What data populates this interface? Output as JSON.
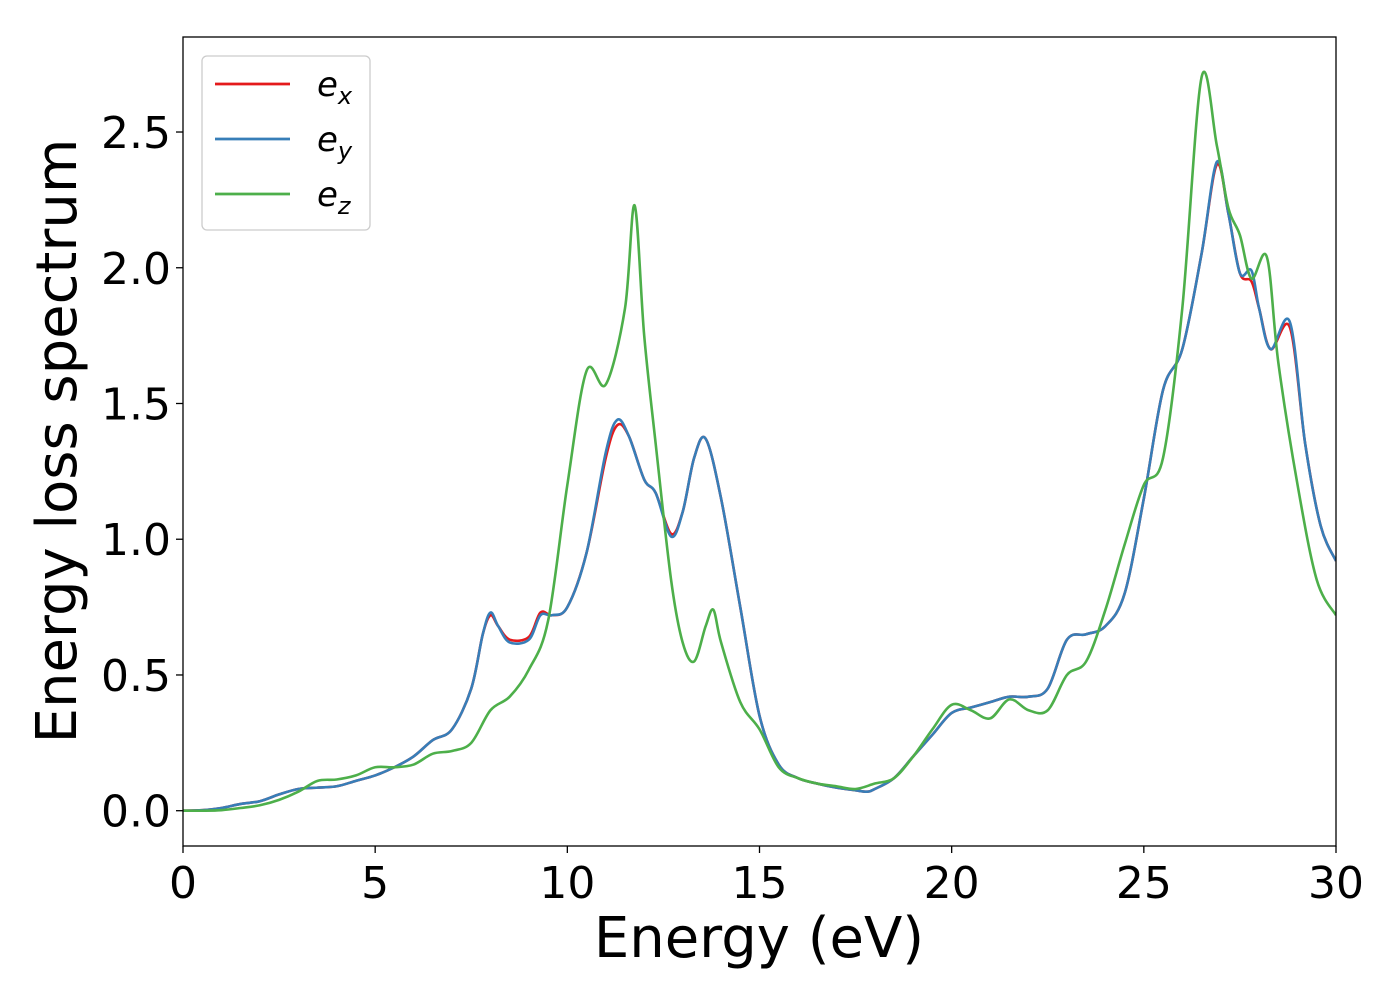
{
  "chart_data": {
    "type": "line",
    "title": "",
    "xlabel": "Energy (eV)",
    "ylabel": "Energy loss spectrum",
    "xlim": [
      0,
      30
    ],
    "ylim": [
      -0.13,
      2.85
    ],
    "xticks": [
      0,
      5,
      10,
      15,
      20,
      25,
      30
    ],
    "xtick_labels": [
      "0",
      "5",
      "10",
      "15",
      "20",
      "25",
      "30"
    ],
    "yticks": [
      0.0,
      0.5,
      1.0,
      1.5,
      2.0,
      2.5
    ],
    "ytick_labels": [
      "0.0",
      "0.5",
      "1.0",
      "1.5",
      "2.0",
      "2.5"
    ],
    "grid": false,
    "legend_position": "top-left",
    "series": [
      {
        "name": "e_x",
        "legend_base": "e",
        "legend_sub": "x",
        "color": "#e41a1c",
        "x": [
          0,
          0.5,
          1,
          1.5,
          2,
          2.5,
          3,
          3.5,
          4,
          4.5,
          5,
          5.5,
          6,
          6.5,
          7,
          7.5,
          7.8,
          8,
          8.2,
          8.5,
          9,
          9.3,
          9.6,
          10,
          10.5,
          11,
          11.3,
          11.6,
          12,
          12.3,
          12.7,
          13,
          13.3,
          13.6,
          14,
          14.5,
          15,
          15.5,
          16,
          16.5,
          17,
          17.5,
          17.8,
          18,
          18.5,
          19,
          19.5,
          20,
          20.5,
          21,
          21.5,
          22,
          22.5,
          23,
          23.5,
          24,
          24.5,
          25,
          25.5,
          26,
          26.5,
          26.9,
          27.2,
          27.5,
          27.8,
          28,
          28.3,
          28.8,
          29.2,
          29.6,
          30
        ],
        "y": [
          0,
          0.002,
          0.01,
          0.025,
          0.035,
          0.06,
          0.08,
          0.085,
          0.09,
          0.11,
          0.13,
          0.16,
          0.2,
          0.26,
          0.3,
          0.45,
          0.65,
          0.72,
          0.68,
          0.63,
          0.64,
          0.73,
          0.72,
          0.75,
          0.95,
          1.3,
          1.42,
          1.38,
          1.22,
          1.17,
          1.02,
          1.1,
          1.3,
          1.37,
          1.15,
          0.75,
          0.35,
          0.17,
          0.12,
          0.1,
          0.085,
          0.075,
          0.07,
          0.08,
          0.12,
          0.2,
          0.28,
          0.36,
          0.38,
          0.4,
          0.42,
          0.42,
          0.45,
          0.63,
          0.65,
          0.68,
          0.8,
          1.15,
          1.55,
          1.7,
          2.05,
          2.38,
          2.2,
          1.98,
          1.95,
          1.85,
          1.7,
          1.78,
          1.35,
          1.05,
          0.92
        ]
      },
      {
        "name": "e_y",
        "legend_base": "e",
        "legend_sub": "y",
        "color": "#377eb8",
        "x": [
          0,
          0.5,
          1,
          1.5,
          2,
          2.5,
          3,
          3.5,
          4,
          4.5,
          5,
          5.5,
          6,
          6.5,
          7,
          7.5,
          7.8,
          8,
          8.2,
          8.5,
          9,
          9.3,
          9.6,
          10,
          10.5,
          11,
          11.3,
          11.6,
          12,
          12.3,
          12.7,
          13,
          13.3,
          13.6,
          14,
          14.5,
          15,
          15.5,
          16,
          16.5,
          17,
          17.5,
          17.8,
          18,
          18.5,
          19,
          19.5,
          20,
          20.5,
          21,
          21.5,
          22,
          22.5,
          23,
          23.5,
          24,
          24.5,
          25,
          25.5,
          26,
          26.5,
          26.9,
          27.2,
          27.5,
          27.8,
          28,
          28.3,
          28.8,
          29.2,
          29.6,
          30
        ],
        "y": [
          0,
          0.002,
          0.01,
          0.025,
          0.035,
          0.06,
          0.08,
          0.085,
          0.09,
          0.11,
          0.13,
          0.16,
          0.2,
          0.26,
          0.3,
          0.45,
          0.65,
          0.73,
          0.68,
          0.62,
          0.63,
          0.72,
          0.72,
          0.75,
          0.95,
          1.32,
          1.44,
          1.38,
          1.22,
          1.17,
          1.01,
          1.1,
          1.3,
          1.37,
          1.15,
          0.75,
          0.35,
          0.17,
          0.12,
          0.1,
          0.085,
          0.075,
          0.07,
          0.08,
          0.12,
          0.2,
          0.28,
          0.36,
          0.38,
          0.4,
          0.42,
          0.42,
          0.45,
          0.63,
          0.65,
          0.68,
          0.8,
          1.15,
          1.55,
          1.7,
          2.05,
          2.39,
          2.2,
          1.98,
          1.99,
          1.85,
          1.7,
          1.8,
          1.35,
          1.05,
          0.92
        ]
      },
      {
        "name": "e_z",
        "legend_base": "e",
        "legend_sub": "z",
        "color": "#4daf4a",
        "x": [
          0,
          0.5,
          1,
          1.5,
          2,
          2.5,
          3,
          3.5,
          4,
          4.5,
          5,
          5.5,
          6,
          6.5,
          7,
          7.5,
          8,
          8.5,
          9,
          9.5,
          10,
          10.5,
          11,
          11.5,
          11.75,
          12,
          12.3,
          12.7,
          13,
          13.3,
          13.6,
          13.8,
          14,
          14.5,
          15,
          15.5,
          16,
          16.5,
          17,
          17.5,
          18,
          18.5,
          19,
          19.5,
          20,
          20.5,
          21,
          21.5,
          22,
          22.5,
          23,
          23.5,
          24,
          24.5,
          25,
          25.5,
          26,
          26.5,
          26.9,
          27.2,
          27.5,
          27.8,
          28.2,
          28.5,
          29,
          29.5,
          30
        ],
        "y": [
          0,
          0,
          0.002,
          0.01,
          0.02,
          0.04,
          0.07,
          0.11,
          0.115,
          0.13,
          0.16,
          0.16,
          0.17,
          0.21,
          0.22,
          0.25,
          0.37,
          0.42,
          0.52,
          0.7,
          1.2,
          1.62,
          1.57,
          1.85,
          2.23,
          1.75,
          1.35,
          0.85,
          0.62,
          0.55,
          0.68,
          0.74,
          0.62,
          0.4,
          0.3,
          0.16,
          0.12,
          0.1,
          0.09,
          0.08,
          0.1,
          0.12,
          0.2,
          0.3,
          0.39,
          0.37,
          0.34,
          0.41,
          0.37,
          0.37,
          0.5,
          0.55,
          0.74,
          0.98,
          1.2,
          1.3,
          1.85,
          2.7,
          2.45,
          2.22,
          2.12,
          1.96,
          2.04,
          1.65,
          1.2,
          0.85,
          0.72
        ]
      }
    ]
  }
}
